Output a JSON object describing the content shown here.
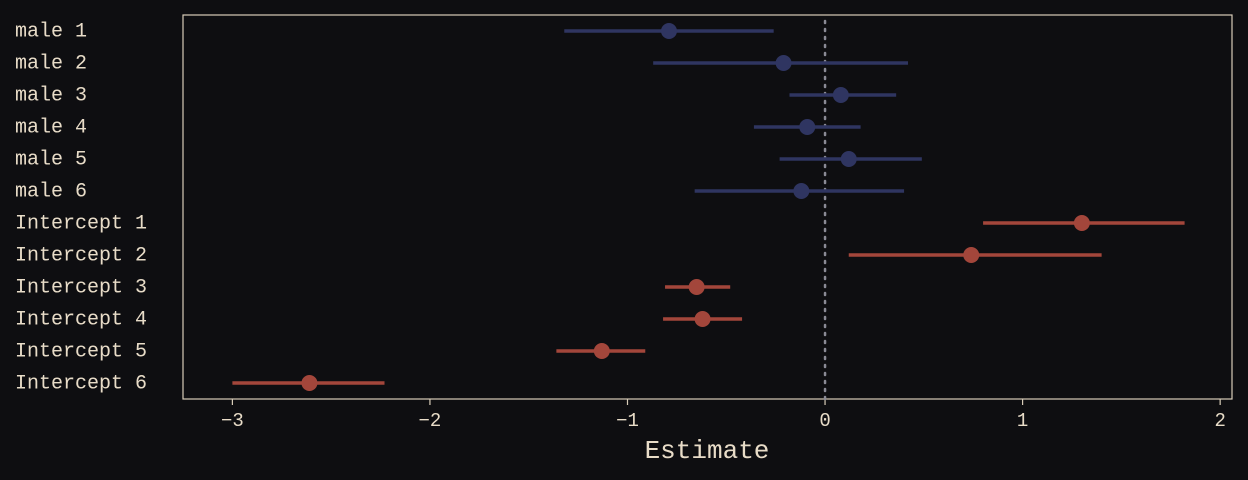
{
  "chart_data": {
    "type": "forest",
    "x_label": "Estimate",
    "categories": [
      "male 1",
      "male 2",
      "male 3",
      "male 4",
      "male 5",
      "male 6",
      "Intercept 1",
      "Intercept 2",
      "Intercept 3",
      "Intercept 4",
      "Intercept 5",
      "Intercept 6"
    ],
    "values": [
      -0.79,
      -0.21,
      0.08,
      -0.09,
      0.12,
      -0.12,
      1.3,
      0.74,
      -0.65,
      -0.62,
      -1.13,
      -2.61
    ],
    "lower": [
      -1.32,
      -0.87,
      -0.18,
      -0.36,
      -0.23,
      -0.66,
      0.8,
      0.12,
      -0.81,
      -0.82,
      -1.36,
      -3.0
    ],
    "upper": [
      -0.26,
      0.42,
      0.36,
      0.18,
      0.49,
      0.4,
      1.82,
      1.4,
      -0.48,
      -0.42,
      -0.91,
      -2.23
    ],
    "colors": [
      "#2f3561",
      "#2f3561",
      "#2f3561",
      "#2f3561",
      "#2f3561",
      "#2f3561",
      "#a3463b",
      "#a3463b",
      "#a3463b",
      "#a3463b",
      "#a3463b",
      "#a3463b"
    ],
    "xlim": [
      -3.25,
      2.06
    ],
    "xticks": [
      {
        "value": -3,
        "label": "−3"
      },
      {
        "value": -2,
        "label": "−2"
      },
      {
        "value": -1,
        "label": "−1"
      },
      0,
      1,
      2
    ],
    "refline": 0
  }
}
